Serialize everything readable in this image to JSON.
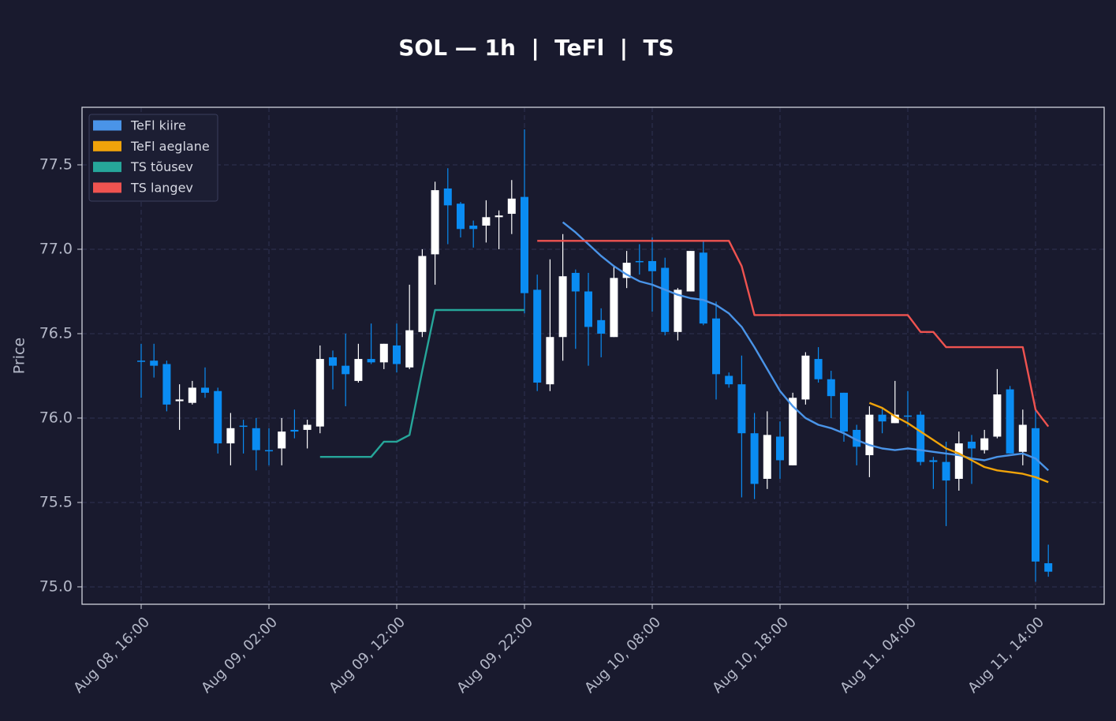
{
  "chart_data": {
    "type": "candlestick",
    "title": "SOL — 1h  |  TeFl  |  TS",
    "y_label": "Price",
    "categories": [
      "Aug 08, 16:00",
      "Aug 08, 17:00",
      "Aug 08, 18:00",
      "Aug 08, 19:00",
      "Aug 08, 20:00",
      "Aug 08, 21:00",
      "Aug 08, 22:00",
      "Aug 08, 23:00",
      "Aug 09, 00:00",
      "Aug 09, 01:00",
      "Aug 09, 02:00",
      "Aug 09, 03:00",
      "Aug 09, 04:00",
      "Aug 09, 05:00",
      "Aug 09, 06:00",
      "Aug 09, 07:00",
      "Aug 09, 08:00",
      "Aug 09, 09:00",
      "Aug 09, 10:00",
      "Aug 09, 11:00",
      "Aug 09, 12:00",
      "Aug 09, 13:00",
      "Aug 09, 14:00",
      "Aug 09, 15:00",
      "Aug 09, 16:00",
      "Aug 09, 17:00",
      "Aug 09, 18:00",
      "Aug 09, 19:00",
      "Aug 09, 20:00",
      "Aug 09, 21:00",
      "Aug 09, 22:00",
      "Aug 09, 23:00",
      "Aug 10, 00:00",
      "Aug 10, 01:00",
      "Aug 10, 02:00",
      "Aug 10, 03:00",
      "Aug 10, 04:00",
      "Aug 10, 05:00",
      "Aug 10, 06:00",
      "Aug 10, 07:00",
      "Aug 10, 08:00",
      "Aug 10, 09:00",
      "Aug 10, 10:00",
      "Aug 10, 11:00",
      "Aug 10, 12:00",
      "Aug 10, 13:00",
      "Aug 10, 14:00",
      "Aug 10, 15:00",
      "Aug 10, 16:00",
      "Aug 10, 17:00",
      "Aug 10, 18:00",
      "Aug 10, 19:00",
      "Aug 10, 20:00",
      "Aug 10, 21:00",
      "Aug 10, 22:00",
      "Aug 10, 23:00",
      "Aug 11, 00:00",
      "Aug 11, 01:00",
      "Aug 11, 02:00",
      "Aug 11, 03:00",
      "Aug 11, 04:00",
      "Aug 11, 05:00",
      "Aug 11, 06:00",
      "Aug 11, 07:00",
      "Aug 11, 08:00",
      "Aug 11, 09:00",
      "Aug 11, 10:00",
      "Aug 11, 11:00",
      "Aug 11, 12:00",
      "Aug 11, 13:00",
      "Aug 11, 14:00",
      "Aug 11, 15:00"
    ],
    "open": [
      76.34,
      76.34,
      76.32,
      76.1,
      76.09,
      76.18,
      76.16,
      75.85,
      75.955,
      75.94,
      75.81,
      75.82,
      75.93,
      75.93,
      75.95,
      76.36,
      76.31,
      76.22,
      76.35,
      76.33,
      76.43,
      76.3,
      76.51,
      76.97,
      77.36,
      77.27,
      77.14,
      77.14,
      77.19,
      77.21,
      77.31,
      76.76,
      76.2,
      76.48,
      76.86,
      76.75,
      76.58,
      76.48,
      76.83,
      76.93,
      76.93,
      76.89,
      76.51,
      76.75,
      76.98,
      76.59,
      76.25,
      76.2,
      75.91,
      75.64,
      75.89,
      75.72,
      76.11,
      76.35,
      76.23,
      76.15,
      75.93,
      75.78,
      76.02,
      75.97,
      76.015,
      76.02,
      75.75,
      75.74,
      75.64,
      75.86,
      75.81,
      75.89,
      76.17,
      75.8,
      75.94,
      75.14
    ],
    "high": [
      76.44,
      76.44,
      76.34,
      76.2,
      76.22,
      76.3,
      76.18,
      76.03,
      75.99,
      76.0,
      75.94,
      76.0,
      76.05,
      75.99,
      76.43,
      76.4,
      76.5,
      76.44,
      76.56,
      76.44,
      76.56,
      76.79,
      77.0,
      77.4,
      77.48,
      77.28,
      77.17,
      77.29,
      77.23,
      77.41,
      77.71,
      76.85,
      76.94,
      77.09,
      76.88,
      76.86,
      76.65,
      76.9,
      76.99,
      77.03,
      77.07,
      76.95,
      76.77,
      76.99,
      77.05,
      76.69,
      76.27,
      76.37,
      76.03,
      76.04,
      75.98,
      76.15,
      76.39,
      76.42,
      76.28,
      76.15,
      75.96,
      76.07,
      76.06,
      76.22,
      76.16,
      76.04,
      75.77,
      75.86,
      75.92,
      75.9,
      75.93,
      76.29,
      76.19,
      76.05,
      76.05,
      75.25
    ],
    "low": [
      76.12,
      76.24,
      76.04,
      75.93,
      76.08,
      76.12,
      75.79,
      75.72,
      75.79,
      75.69,
      75.72,
      75.72,
      75.88,
      75.82,
      75.91,
      76.17,
      76.07,
      76.21,
      76.32,
      76.29,
      76.27,
      76.29,
      76.48,
      76.79,
      77.03,
      77.07,
      77.01,
      77.04,
      77.0,
      77.09,
      76.62,
      76.16,
      76.16,
      76.34,
      76.41,
      76.31,
      76.36,
      76.48,
      76.77,
      76.85,
      76.63,
      76.49,
      76.46,
      76.75,
      76.55,
      76.11,
      76.18,
      75.53,
      75.52,
      75.58,
      75.64,
      75.72,
      76.08,
      76.21,
      76.0,
      75.86,
      75.72,
      75.65,
      75.91,
      75.97,
      75.95,
      75.72,
      75.58,
      75.36,
      75.57,
      75.61,
      75.79,
      75.88,
      75.79,
      75.72,
      75.03,
      75.06
    ],
    "close": [
      76.335,
      76.31,
      76.08,
      76.11,
      76.18,
      76.15,
      75.85,
      75.94,
      75.95,
      75.81,
      75.805,
      75.92,
      75.92,
      75.96,
      76.35,
      76.31,
      76.26,
      76.35,
      76.33,
      76.44,
      76.32,
      76.52,
      76.96,
      77.35,
      77.26,
      77.12,
      77.12,
      77.19,
      77.2,
      77.3,
      76.74,
      76.21,
      76.48,
      76.84,
      76.75,
      76.54,
      76.5,
      76.83,
      76.92,
      76.925,
      76.87,
      76.51,
      76.76,
      76.99,
      76.56,
      76.26,
      76.2,
      75.91,
      75.61,
      75.9,
      75.75,
      76.12,
      76.37,
      76.23,
      76.13,
      75.92,
      75.83,
      76.02,
      75.98,
      76.02,
      76.01,
      75.74,
      75.74,
      75.63,
      75.85,
      75.82,
      75.88,
      76.14,
      75.79,
      75.96,
      75.15,
      75.09
    ],
    "up_color": "#ffffff",
    "down_color": "#0a8cf2",
    "series": [
      {
        "name": "TeFl kiire",
        "color": "#4a94e8",
        "values": [
          null,
          null,
          null,
          null,
          null,
          null,
          null,
          null,
          null,
          null,
          null,
          null,
          null,
          null,
          null,
          null,
          null,
          null,
          null,
          null,
          null,
          null,
          null,
          null,
          null,
          null,
          null,
          null,
          null,
          null,
          null,
          null,
          null,
          77.16,
          77.1,
          77.03,
          76.96,
          76.9,
          76.85,
          76.81,
          76.79,
          76.76,
          76.73,
          76.71,
          76.7,
          76.67,
          76.62,
          76.54,
          76.42,
          76.29,
          76.16,
          76.07,
          76.0,
          75.96,
          75.94,
          75.91,
          75.87,
          75.84,
          75.82,
          75.81,
          75.82,
          75.81,
          75.8,
          75.79,
          75.78,
          75.76,
          75.75,
          75.77,
          75.78,
          75.79,
          75.76,
          75.69
        ]
      },
      {
        "name": "TeFl aeglane",
        "color": "#f0a30a",
        "values": [
          null,
          null,
          null,
          null,
          null,
          null,
          null,
          null,
          null,
          null,
          null,
          null,
          null,
          null,
          null,
          null,
          null,
          null,
          null,
          null,
          null,
          null,
          null,
          null,
          null,
          null,
          null,
          null,
          null,
          null,
          null,
          null,
          null,
          null,
          null,
          null,
          null,
          null,
          null,
          null,
          null,
          null,
          null,
          null,
          null,
          null,
          null,
          null,
          null,
          null,
          null,
          null,
          null,
          null,
          null,
          null,
          null,
          76.09,
          76.06,
          76.01,
          75.97,
          75.92,
          75.87,
          75.82,
          75.79,
          75.75,
          75.71,
          75.69,
          75.68,
          75.67,
          75.65,
          75.62
        ]
      },
      {
        "name": "TS tõusev",
        "color": "#26a69a",
        "values": [
          null,
          null,
          null,
          null,
          null,
          null,
          null,
          null,
          null,
          null,
          null,
          null,
          null,
          null,
          75.77,
          75.77,
          75.77,
          75.77,
          75.77,
          75.86,
          75.86,
          75.9,
          76.28,
          76.64,
          76.64,
          76.64,
          76.64,
          76.64,
          76.64,
          76.64,
          76.64,
          null,
          null,
          null,
          null,
          null,
          null,
          null,
          null,
          null,
          null,
          null,
          null,
          null,
          null,
          null,
          null,
          null,
          null,
          null,
          null,
          null,
          null,
          null,
          null,
          null,
          null,
          null,
          null,
          null,
          null,
          null,
          null,
          null,
          null,
          null,
          null,
          null,
          null,
          null,
          null,
          null
        ]
      },
      {
        "name": "TS langev",
        "color": "#ef5350",
        "values": [
          null,
          null,
          null,
          null,
          null,
          null,
          null,
          null,
          null,
          null,
          null,
          null,
          null,
          null,
          null,
          null,
          null,
          null,
          null,
          null,
          null,
          null,
          null,
          null,
          null,
          null,
          null,
          null,
          null,
          null,
          null,
          77.05,
          77.05,
          77.05,
          77.05,
          77.05,
          77.05,
          77.05,
          77.05,
          77.05,
          77.05,
          77.05,
          77.05,
          77.05,
          77.05,
          77.05,
          77.05,
          76.9,
          76.61,
          76.61,
          76.61,
          76.61,
          76.61,
          76.61,
          76.61,
          76.61,
          76.61,
          76.61,
          76.61,
          76.61,
          76.61,
          76.51,
          76.51,
          76.42,
          76.42,
          76.42,
          76.42,
          76.42,
          76.42,
          76.42,
          76.05,
          75.95
        ]
      }
    ],
    "xticks": [
      "Aug 08, 16:00",
      "Aug 09, 02:00",
      "Aug 09, 12:00",
      "Aug 09, 22:00",
      "Aug 10, 08:00",
      "Aug 10, 18:00",
      "Aug 11, 04:00",
      "Aug 11, 14:00"
    ],
    "ylim": [
      74.897,
      77.841
    ],
    "yticks": [
      {
        "value": 75,
        "label": "75.0"
      },
      75.5,
      {
        "value": 76,
        "label": "76.0"
      },
      76.5,
      {
        "value": 77,
        "label": "77.0"
      },
      77.5
    ],
    "grid": true,
    "legend": "upper left"
  }
}
